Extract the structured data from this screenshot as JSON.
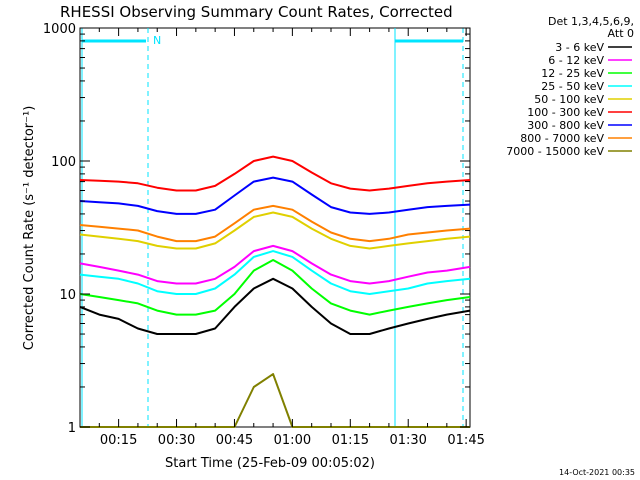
{
  "chart_data": {
    "type": "line",
    "title": "RHESSI Observing Summary Count Rates, Corrected",
    "xlabel": "Start Time (25-Feb-09 00:05:02)",
    "ylabel": "Corrected Count Rate (s⁻¹ detector⁻¹)",
    "y_scale": "log",
    "ylim": [
      1,
      1000
    ],
    "xlim": [
      "00:05",
      "01:46"
    ],
    "x_ticks": [
      "00:15",
      "00:30",
      "00:45",
      "01:00",
      "01:15",
      "01:30",
      "01:45"
    ],
    "y_ticks": [
      "1",
      "10",
      "100",
      "1000"
    ],
    "legend_header": [
      "Det 1,3,4,5,6,9,",
      "Att 0"
    ],
    "legend_position": "right",
    "timestamp": "14-Oct-2021 00:35",
    "night_marker": "N",
    "series": [
      {
        "name": "3 - 6 keV",
        "color": "#000000",
        "x": [
          "00:05",
          "00:10",
          "00:15",
          "00:20",
          "00:25",
          "00:30",
          "00:35",
          "00:40",
          "00:45",
          "00:50",
          "00:55",
          "01:00",
          "01:05",
          "01:10",
          "01:15",
          "01:20",
          "01:25",
          "01:30",
          "01:35",
          "01:40",
          "01:46"
        ],
        "values": [
          8,
          7,
          6.5,
          5.5,
          5,
          5,
          5,
          5.5,
          8,
          11,
          13,
          11,
          8,
          6,
          5,
          5,
          5.5,
          6,
          6.5,
          7,
          7.5
        ]
      },
      {
        "name": "6 - 12 keV",
        "color": "#ff00ff",
        "x": [
          "00:05",
          "00:10",
          "00:15",
          "00:20",
          "00:25",
          "00:30",
          "00:35",
          "00:40",
          "00:45",
          "00:50",
          "00:55",
          "01:00",
          "01:05",
          "01:10",
          "01:15",
          "01:20",
          "01:25",
          "01:30",
          "01:35",
          "01:40",
          "01:46"
        ],
        "values": [
          17,
          16,
          15,
          14,
          12.5,
          12,
          12,
          13,
          16,
          21,
          23,
          21,
          17,
          14,
          12.5,
          12,
          12.5,
          13.5,
          14.5,
          15,
          16
        ]
      },
      {
        "name": "12 - 25 keV",
        "color": "#00ff00",
        "x": [
          "00:05",
          "00:10",
          "00:15",
          "00:20",
          "00:25",
          "00:30",
          "00:35",
          "00:40",
          "00:45",
          "00:50",
          "00:55",
          "01:00",
          "01:05",
          "01:10",
          "01:15",
          "01:20",
          "01:25",
          "01:30",
          "01:35",
          "01:40",
          "01:46"
        ],
        "values": [
          10,
          9.5,
          9,
          8.5,
          7.5,
          7,
          7,
          7.5,
          10,
          15,
          18,
          15,
          11,
          8.5,
          7.5,
          7,
          7.5,
          8,
          8.5,
          9,
          9.5
        ]
      },
      {
        "name": "25 - 50 keV",
        "color": "#00ffff",
        "x": [
          "00:05",
          "00:10",
          "00:15",
          "00:20",
          "00:25",
          "00:30",
          "00:35",
          "00:40",
          "00:45",
          "00:50",
          "00:55",
          "01:00",
          "01:05",
          "01:10",
          "01:15",
          "01:20",
          "01:25",
          "01:30",
          "01:35",
          "01:40",
          "01:46"
        ],
        "values": [
          14,
          13.5,
          13,
          12,
          10.5,
          10,
          10,
          11,
          14,
          19,
          21,
          19,
          15,
          12,
          10.5,
          10,
          10.5,
          11,
          12,
          12.5,
          13
        ]
      },
      {
        "name": "50 - 100 keV",
        "color": "#e0d000",
        "x": [
          "00:05",
          "00:10",
          "00:15",
          "00:20",
          "00:25",
          "00:30",
          "00:35",
          "00:40",
          "00:45",
          "00:50",
          "00:55",
          "01:00",
          "01:05",
          "01:10",
          "01:15",
          "01:20",
          "01:25",
          "01:30",
          "01:35",
          "01:40",
          "01:46"
        ],
        "values": [
          28,
          27,
          26,
          25,
          23,
          22,
          22,
          24,
          30,
          38,
          41,
          38,
          31,
          26,
          23,
          22,
          23,
          24,
          25,
          26,
          27
        ]
      },
      {
        "name": "100 - 300 keV",
        "color": "#ff0000",
        "x": [
          "00:05",
          "00:10",
          "00:15",
          "00:20",
          "00:25",
          "00:30",
          "00:35",
          "00:40",
          "00:45",
          "00:50",
          "00:55",
          "01:00",
          "01:05",
          "01:10",
          "01:15",
          "01:20",
          "01:25",
          "01:30",
          "01:35",
          "01:40",
          "01:46"
        ],
        "values": [
          72,
          71,
          70,
          68,
          63,
          60,
          60,
          65,
          80,
          100,
          108,
          100,
          82,
          68,
          62,
          60,
          62,
          65,
          68,
          70,
          72
        ]
      },
      {
        "name": "300 - 800 keV",
        "color": "#0000ff",
        "x": [
          "00:05",
          "00:10",
          "00:15",
          "00:20",
          "00:25",
          "00:30",
          "00:35",
          "00:40",
          "00:45",
          "00:50",
          "00:55",
          "01:00",
          "01:05",
          "01:10",
          "01:15",
          "01:20",
          "01:25",
          "01:30",
          "01:35",
          "01:40",
          "01:46"
        ],
        "values": [
          50,
          49,
          48,
          46,
          42,
          40,
          40,
          43,
          55,
          70,
          75,
          70,
          56,
          45,
          41,
          40,
          41,
          43,
          45,
          46,
          47
        ]
      },
      {
        "name": "800 - 7000 keV",
        "color": "#ff8000",
        "x": [
          "00:05",
          "00:10",
          "00:15",
          "00:20",
          "00:25",
          "00:30",
          "00:35",
          "00:40",
          "00:45",
          "00:50",
          "00:55",
          "01:00",
          "01:05",
          "01:10",
          "01:15",
          "01:20",
          "01:25",
          "01:30",
          "01:35",
          "01:40",
          "01:46"
        ],
        "values": [
          33,
          32,
          31,
          30,
          27,
          25,
          25,
          27,
          34,
          43,
          46,
          43,
          35,
          29,
          26,
          25,
          26,
          28,
          29,
          30,
          31
        ]
      },
      {
        "name": "7000 - 15000 keV",
        "color": "#808000",
        "x": [
          "00:05",
          "00:10",
          "00:15",
          "00:20",
          "00:25",
          "00:30",
          "00:35",
          "00:40",
          "00:45",
          "00:50",
          "00:55",
          "01:00",
          "01:05",
          "01:10",
          "01:15",
          "01:20",
          "01:25",
          "01:30",
          "01:35",
          "01:40",
          "01:46"
        ],
        "values": [
          1,
          1,
          1,
          1,
          1,
          1,
          1,
          1,
          1,
          2,
          2.5,
          1,
          1,
          1,
          1,
          1,
          1,
          1,
          1,
          1,
          1
        ]
      }
    ]
  }
}
